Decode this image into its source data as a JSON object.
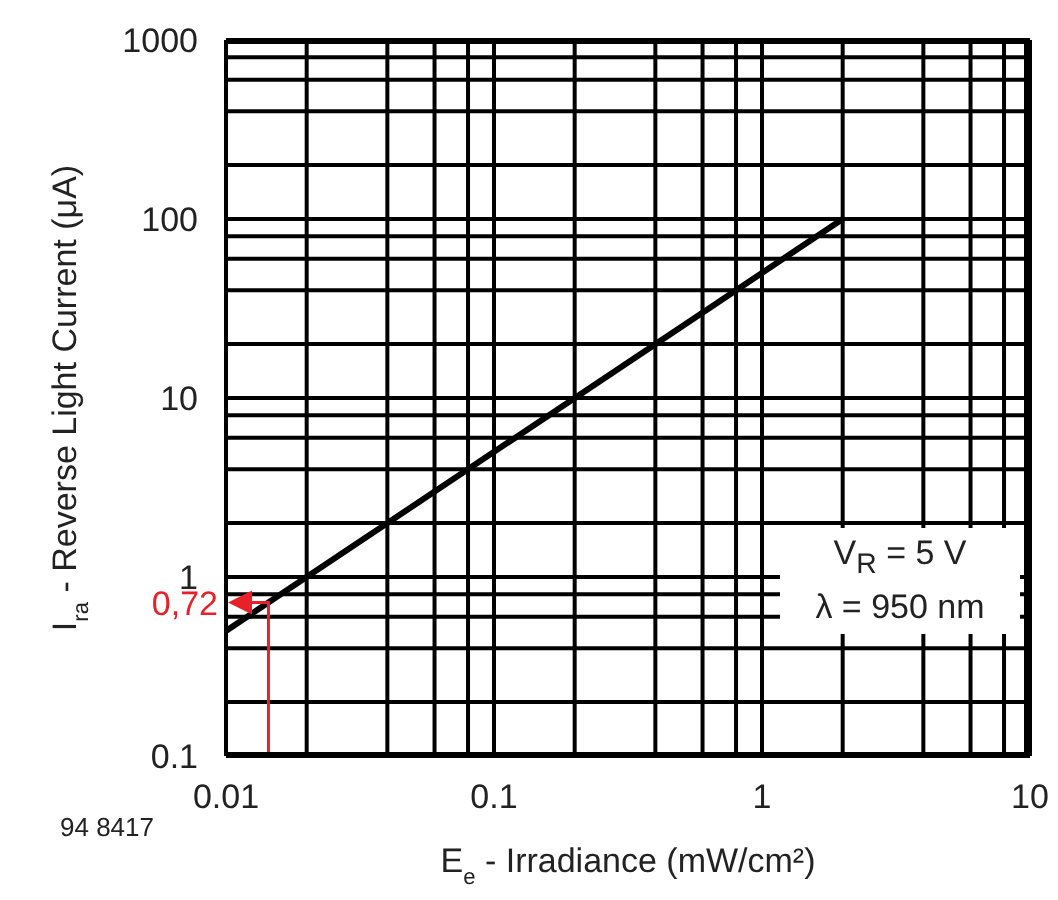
{
  "chart_data": {
    "type": "line",
    "xlabel": "E$_{e}$ - Irradiance (mW/cm²)",
    "ylabel": "I$_{ra}$ - Reverse Light Current (μA)",
    "x": [
      0.01,
      2
    ],
    "series": [
      {
        "color": "#000000",
        "values": [
          0.5,
          100
        ]
      }
    ],
    "log": "xy",
    "xlim": [
      0.01,
      10
    ],
    "xticks": [
      0.01,
      {
        "value": 0.02,
        "label": null
      },
      {
        "value": 0.04,
        "label": null
      },
      {
        "value": 0.06,
        "label": null
      },
      {
        "value": 0.08,
        "label": null
      },
      0.1,
      {
        "value": 0.2,
        "label": null
      },
      {
        "value": 0.4,
        "label": null
      },
      {
        "value": 0.6,
        "label": null
      },
      {
        "value": 0.8,
        "label": null
      },
      1,
      {
        "value": 2,
        "label": null
      },
      {
        "value": 4,
        "label": null
      },
      {
        "value": 6,
        "label": null
      },
      {
        "value": 8,
        "label": null
      },
      10
    ],
    "ylim": [
      0.1,
      1000
    ],
    "yticks": [
      0.1,
      {
        "value": 0.2,
        "label": null
      },
      {
        "value": 0.4,
        "label": null
      },
      {
        "value": 0.6,
        "label": null
      },
      {
        "value": 0.8,
        "label": null
      },
      1,
      {
        "value": 2,
        "label": null
      },
      {
        "value": 4,
        "label": null
      },
      {
        "value": 6,
        "label": null
      },
      {
        "value": 8,
        "label": null
      },
      10,
      {
        "value": 20,
        "label": null
      },
      {
        "value": 40,
        "label": null
      },
      {
        "value": 60,
        "label": null
      },
      {
        "value": 80,
        "label": null
      },
      100,
      {
        "value": 200,
        "label": null
      },
      {
        "value": 400,
        "label": null
      },
      {
        "value": 600,
        "label": null
      },
      {
        "value": 800,
        "label": null
      },
      1000
    ],
    "grid": true,
    "marker": "none",
    "annotations": [
      "94 8417",
      "V$_{R}$ = 5 V",
      "λ = 950 nm",
      {
        "text": "0,72",
        "x": 0.0144,
        "y": 0.72
      }
    ]
  }
}
